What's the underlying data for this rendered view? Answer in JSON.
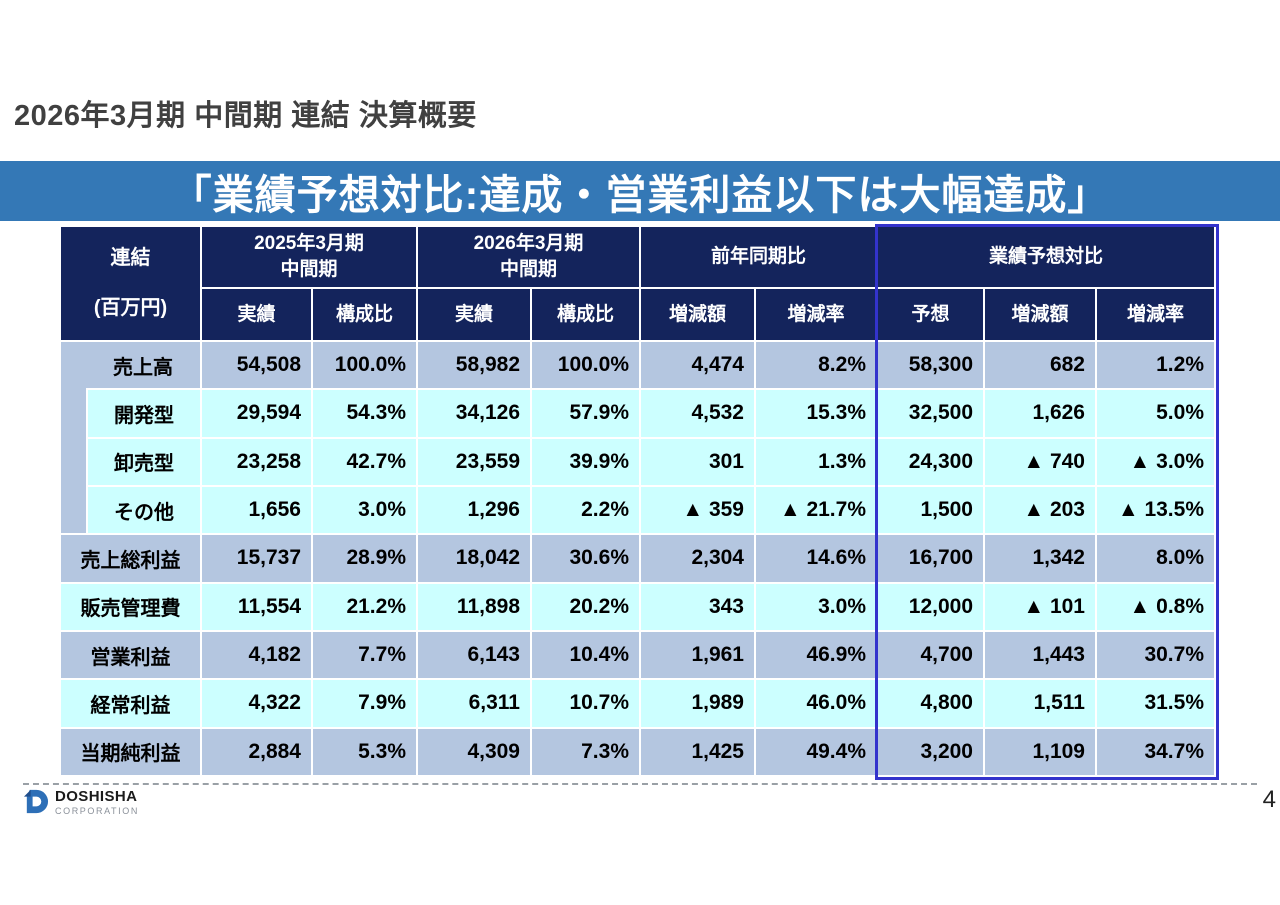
{
  "slide": {
    "title": "2026年3月期 中間期 連結 決算概要",
    "banner": "「業績予想対比:達成・営業利益以下は大幅達成」",
    "page_number": "4"
  },
  "logo": {
    "name": "DOSHISHA",
    "sub": "CORPORATION",
    "icon": "doshisha-d-icon"
  },
  "colors": {
    "banner": "#3478b6",
    "header_bg": "#14245c",
    "row_a": "#b4c6e0",
    "row_b": "#ccffff",
    "highlight_border": "#3333cc",
    "brand_blue": "#2d6fb7"
  },
  "table": {
    "corner": {
      "line1": "連結",
      "line2": "(百万円)"
    },
    "groups": [
      {
        "label": "2025年3月期\n中間期",
        "cols": [
          "実績",
          "構成比"
        ],
        "highlight": false
      },
      {
        "label": "2026年3月期\n中間期",
        "cols": [
          "実績",
          "構成比"
        ],
        "highlight": false
      },
      {
        "label": "前年同期比",
        "cols": [
          "増減額",
          "増減率"
        ],
        "highlight": false
      },
      {
        "label": "業績予想対比",
        "cols": [
          "予想",
          "増減額",
          "増減率"
        ],
        "highlight": true
      }
    ],
    "rows": [
      {
        "label": "売上高",
        "indent": false,
        "children_head": true,
        "shade": "a",
        "values": [
          "54,508",
          "100.0%",
          "58,982",
          "100.0%",
          "4,474",
          "8.2%",
          "58,300",
          "682",
          "1.2%"
        ]
      },
      {
        "label": "開発型",
        "indent": true,
        "children_head": false,
        "shade": "b",
        "values": [
          "29,594",
          "54.3%",
          "34,126",
          "57.9%",
          "4,532",
          "15.3%",
          "32,500",
          "1,626",
          "5.0%"
        ]
      },
      {
        "label": "卸売型",
        "indent": true,
        "children_head": false,
        "shade": "b",
        "values": [
          "23,258",
          "42.7%",
          "23,559",
          "39.9%",
          "301",
          "1.3%",
          "24,300",
          "▲ 740",
          "▲ 3.0%"
        ]
      },
      {
        "label": "その他",
        "indent": true,
        "children_head": false,
        "shade": "b",
        "strip_end": true,
        "values": [
          "1,656",
          "3.0%",
          "1,296",
          "2.2%",
          "▲ 359",
          "▲ 21.7%",
          "1,500",
          "▲ 203",
          "▲ 13.5%"
        ]
      },
      {
        "label": "売上総利益",
        "indent": false,
        "children_head": false,
        "shade": "a",
        "values": [
          "15,737",
          "28.9%",
          "18,042",
          "30.6%",
          "2,304",
          "14.6%",
          "16,700",
          "1,342",
          "8.0%"
        ]
      },
      {
        "label": "販売管理費",
        "indent": false,
        "children_head": false,
        "shade": "b",
        "values": [
          "11,554",
          "21.2%",
          "11,898",
          "20.2%",
          "343",
          "3.0%",
          "12,000",
          "▲ 101",
          "▲ 0.8%"
        ]
      },
      {
        "label": "営業利益",
        "indent": false,
        "children_head": false,
        "shade": "a",
        "values": [
          "4,182",
          "7.7%",
          "6,143",
          "10.4%",
          "1,961",
          "46.9%",
          "4,700",
          "1,443",
          "30.7%"
        ]
      },
      {
        "label": "経常利益",
        "indent": false,
        "children_head": false,
        "shade": "b",
        "values": [
          "4,322",
          "7.9%",
          "6,311",
          "10.7%",
          "1,989",
          "46.0%",
          "4,800",
          "1,511",
          "31.5%"
        ]
      },
      {
        "label": "当期純利益",
        "indent": false,
        "children_head": false,
        "shade": "a",
        "values": [
          "2,884",
          "5.3%",
          "4,309",
          "7.3%",
          "1,425",
          "49.4%",
          "3,200",
          "1,109",
          "34.7%"
        ]
      }
    ]
  }
}
